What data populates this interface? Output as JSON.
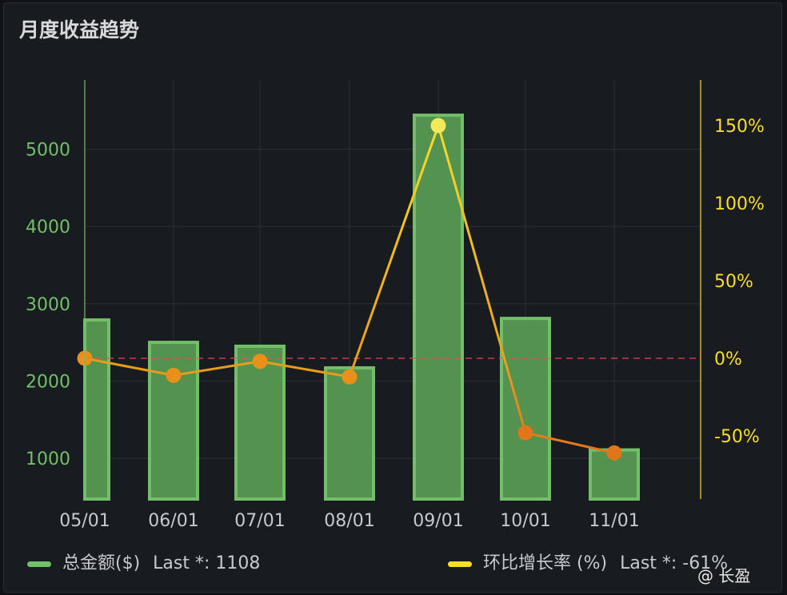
{
  "title": "月度收益趋势",
  "chart_data": {
    "type": "bar",
    "categories": [
      "05/01",
      "06/01",
      "07/01",
      "08/01",
      "09/01",
      "10/01",
      "11/01"
    ],
    "series": [
      {
        "name": "总金额($)",
        "type": "bar",
        "axis": "left",
        "color": "#73bf69",
        "values": [
          2790,
          2500,
          2450,
          2170,
          5440,
          2810,
          1108
        ]
      },
      {
        "name": "环比增长率 (%)",
        "type": "line",
        "axis": "right",
        "color": "#fade2a",
        "values": [
          0,
          -11,
          -2,
          -12,
          150,
          -48,
          -61
        ]
      }
    ],
    "y_left": {
      "ticks": [
        "1000",
        "2000",
        "3000",
        "4000",
        "5000"
      ],
      "color": "#73bf69"
    },
    "y_right": {
      "ticks": [
        "-50%",
        "0%",
        "50%",
        "100%",
        "150%"
      ],
      "color": "#fade2a"
    },
    "threshold": {
      "value": 0,
      "axis": "right",
      "color": "#f2495c",
      "style": "dashed"
    },
    "grid": true,
    "legend_position": "bottom"
  },
  "legend": [
    {
      "name": "总金额($)",
      "last_label": "Last *: 1108",
      "color": "#73bf69"
    },
    {
      "name": "环比增长率 (%)",
      "last_label": "Last *: -61%",
      "color": "#fade2a"
    }
  ],
  "watermark": "@ 长盈"
}
